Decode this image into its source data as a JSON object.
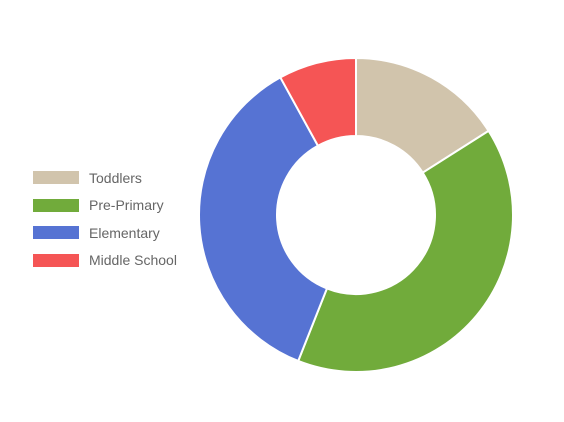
{
  "chart_data": {
    "type": "pie",
    "variant": "doughnut",
    "title": "",
    "legend_position": "left",
    "categories": [
      "Toddlers",
      "Pre-Primary",
      "Elementary",
      "Middle School"
    ],
    "values": [
      16,
      40,
      36,
      8
    ],
    "colors": [
      "#d1c4ac",
      "#71ab3b",
      "#5673d3",
      "#f55555"
    ]
  }
}
